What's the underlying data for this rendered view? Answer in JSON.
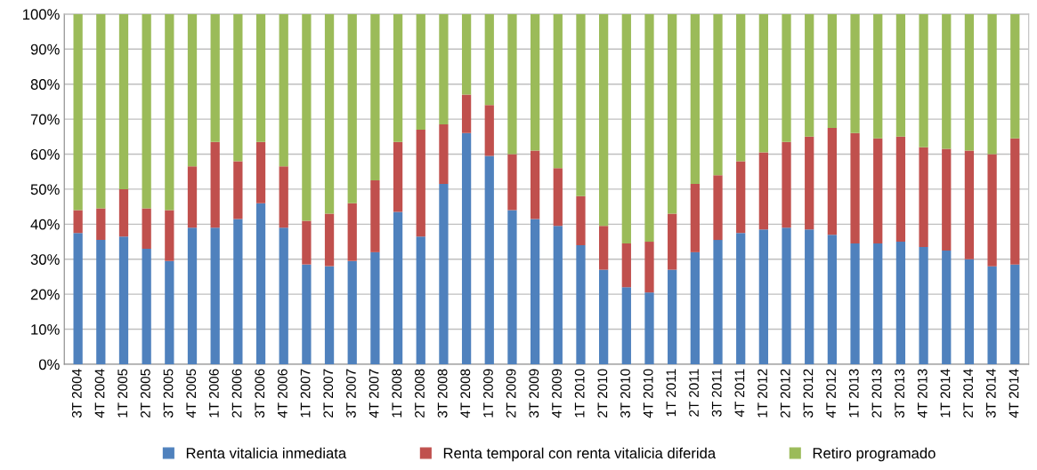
{
  "chart_data": {
    "type": "bar",
    "stacked": true,
    "categories": [
      "3T 2004",
      "4T 2004",
      "1T 2005",
      "2T 2005",
      "3T 2005",
      "4T 2005",
      "1T 2006",
      "2T 2006",
      "3T 2006",
      "4T 2006",
      "1T 2007",
      "2T 2007",
      "3T 2007",
      "4T 2007",
      "1T 2008",
      "2T 2008",
      "3T 2008",
      "4T 2008",
      "1T 2009",
      "2T 2009",
      "3T 2009",
      "4T 2009",
      "1T 2010",
      "2T 2010",
      "3T 2010",
      "4T 2010",
      "1T 2011",
      "2T 2011",
      "3T 2011",
      "4T 2011",
      "1T 2012",
      "2T 2012",
      "3T 2012",
      "4T 2012",
      "1T 2013",
      "2T 2013",
      "3T 2013",
      "4T 2013",
      "1T 2014",
      "2T 2014",
      "3T 2014",
      "4T 2014"
    ],
    "series": [
      {
        "name": "Renta vitalicia inmediata",
        "color": "#4f81bd",
        "values": [
          37.5,
          35.5,
          36.5,
          33,
          29.5,
          39,
          39,
          41.5,
          46,
          39,
          28.5,
          28,
          29.5,
          32,
          43.5,
          36.5,
          51.5,
          66,
          59.5,
          44,
          41.5,
          39.5,
          34,
          27,
          22,
          20.5,
          27,
          32,
          35.5,
          37.5,
          38.5,
          39,
          38.5,
          37,
          34.5,
          34.5,
          35,
          33.5,
          32.5,
          30,
          28,
          28.5
        ]
      },
      {
        "name": "Renta temporal con renta vitalicia diferida",
        "color": "#c0504d",
        "values": [
          6.5,
          9,
          13.5,
          11.5,
          14.5,
          17.5,
          24.5,
          16.5,
          17.5,
          17.5,
          12.5,
          15,
          16.5,
          20.5,
          20,
          30.5,
          17,
          11,
          14.5,
          16,
          19.5,
          16.5,
          14,
          12.5,
          12.5,
          14.5,
          16,
          19.5,
          18.5,
          20.5,
          22,
          24.5,
          26.5,
          30.5,
          31.5,
          30,
          30,
          28.5,
          29,
          31,
          32,
          36
        ]
      },
      {
        "name": "Retiro programado",
        "color": "#9bbb59",
        "values": [
          56,
          55.5,
          50,
          55.5,
          56,
          43.5,
          36.5,
          42,
          36.5,
          43.5,
          59,
          57,
          54,
          47.5,
          36.5,
          33,
          31.5,
          23,
          26,
          40,
          39,
          44,
          52,
          60.5,
          65.5,
          65,
          57,
          48.5,
          46,
          42,
          39.5,
          36.5,
          35,
          32.5,
          34,
          35.5,
          35,
          38,
          38.5,
          39,
          40,
          35.5
        ]
      }
    ],
    "ylim": [
      0,
      100
    ],
    "yticks": [
      {
        "value": 0,
        "label": "0%"
      },
      {
        "value": 10,
        "label": "10%"
      },
      {
        "value": 20,
        "label": "20%"
      },
      {
        "value": 30,
        "label": "30%"
      },
      {
        "value": 40,
        "label": "40%"
      },
      {
        "value": 50,
        "label": "50%"
      },
      {
        "value": 60,
        "label": "60%"
      },
      {
        "value": 70,
        "label": "70%"
      },
      {
        "value": 80,
        "label": "80%"
      },
      {
        "value": 90,
        "label": "90%"
      },
      {
        "value": 100,
        "label": "100%"
      }
    ],
    "grid": "y",
    "legend": "bottom"
  }
}
